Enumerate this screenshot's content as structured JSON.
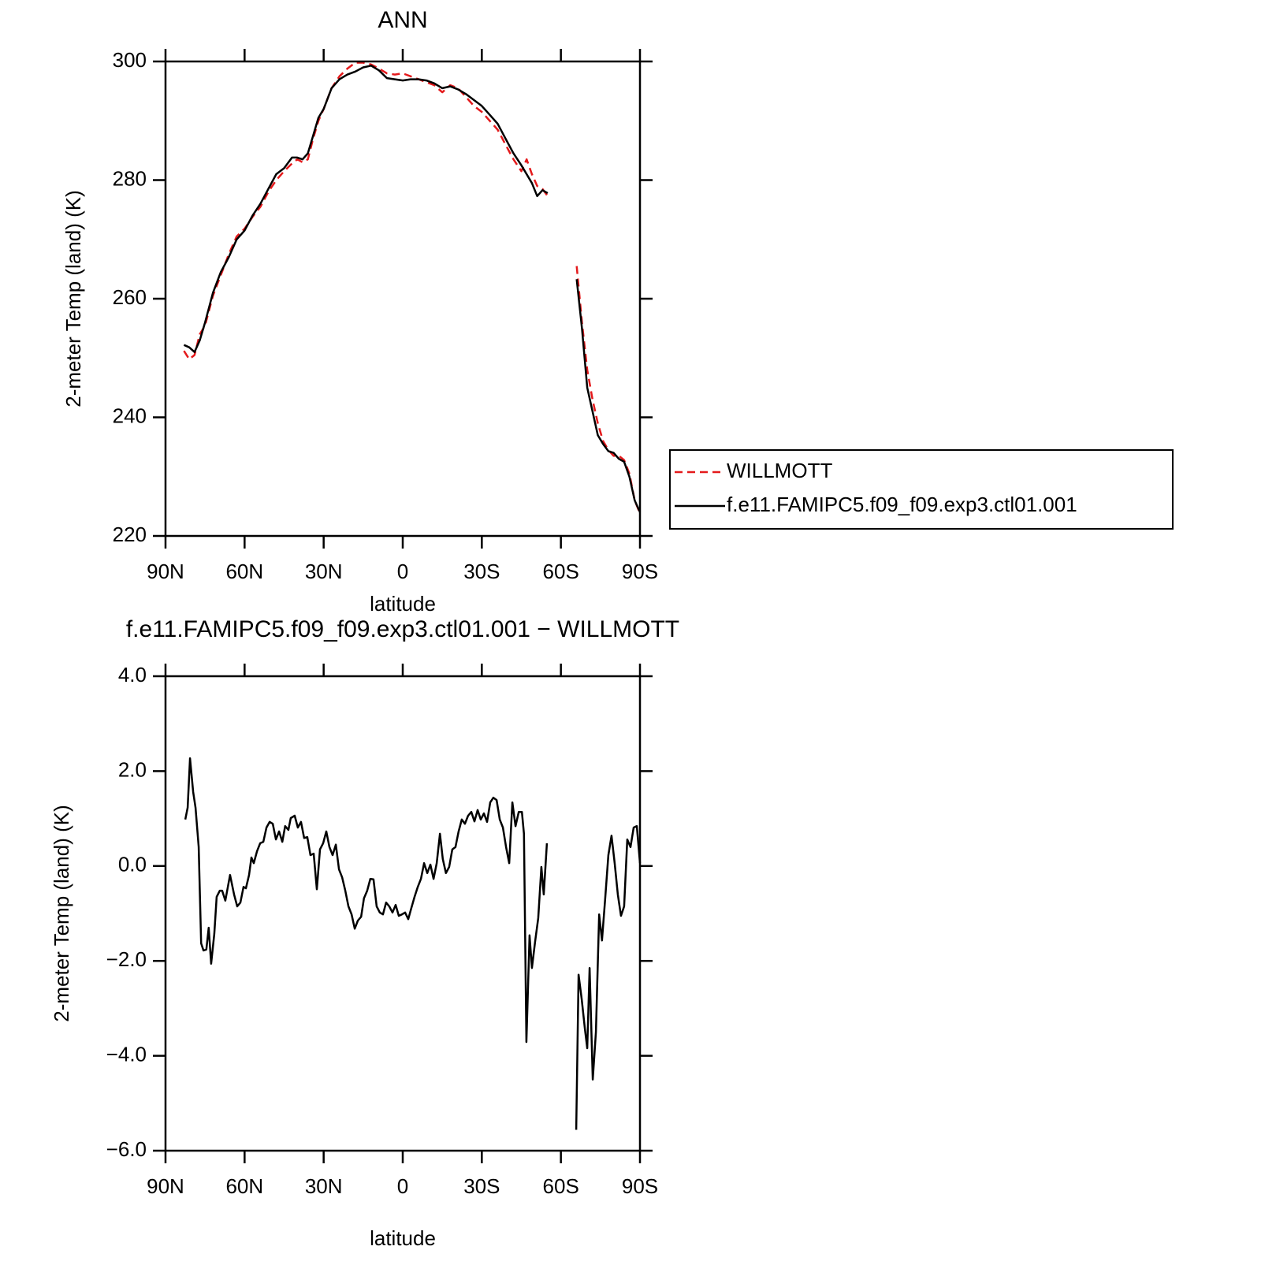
{
  "chart_data": [
    {
      "type": "line",
      "title": "ANN",
      "xlabel": "latitude",
      "ylabel": "2-meter Temp (land) (K)",
      "x": [
        83,
        81,
        79,
        77,
        75,
        72,
        69,
        66,
        63,
        60,
        57,
        54,
        51,
        48,
        45,
        42,
        40,
        38,
        36,
        34,
        32,
        30,
        27,
        24,
        21,
        18,
        15,
        12,
        9,
        6,
        3,
        0,
        -3,
        -6,
        -9,
        -12,
        -15,
        -18,
        -21,
        -24,
        -27,
        -30,
        -33,
        -36,
        -39,
        -42,
        -45,
        -47,
        -49,
        -51,
        -53,
        -55,
        -60,
        -66,
        -68,
        -70,
        -72,
        -74,
        -76,
        -78,
        -80,
        -82,
        -84,
        -86,
        -88,
        -90
      ],
      "xlim": [
        90,
        -90
      ],
      "xticks": [
        {
          "value": 90,
          "label": "90N"
        },
        {
          "value": 60,
          "label": "60N"
        },
        {
          "value": 30,
          "label": "30N"
        },
        0,
        {
          "value": -30,
          "label": "30S"
        },
        {
          "value": -60,
          "label": "60S"
        },
        {
          "value": -90,
          "label": "90S"
        }
      ],
      "ylim": [
        220,
        300
      ],
      "yticks": [
        220,
        240,
        260,
        280,
        300
      ],
      "legend": "right",
      "series": [
        {
          "name": "WILLMOTT",
          "color": "#e41a1c",
          "dash": "dashed",
          "values": [
            251.2,
            249.8,
            250.5,
            254,
            255.5,
            260.5,
            264,
            267.5,
            270.5,
            271.8,
            273.8,
            275.5,
            278,
            280,
            281.5,
            282.8,
            283.5,
            283,
            283.5,
            287,
            290,
            292,
            295.5,
            297.5,
            298.8,
            299.8,
            299.8,
            299.5,
            298.8,
            298,
            297.8,
            298,
            297.5,
            297,
            296.5,
            296,
            294.8,
            296,
            295.5,
            294,
            292.5,
            291.5,
            290,
            288.5,
            286,
            283.5,
            281.5,
            283.5,
            281,
            279,
            278.5,
            277.3,
            null,
            265.5,
            256,
            248,
            243,
            239,
            236,
            234.5,
            233.5,
            233.5,
            232.8,
            230.5,
            226,
            223.8
          ]
        },
        {
          "name": "f.e11.FAMIPC5.f09_f09.exp3.ctl01.001",
          "color": "#000000",
          "dash": "solid",
          "values": [
            252.2,
            251.8,
            251,
            253,
            256,
            261,
            264.5,
            267,
            270,
            271.5,
            274,
            276,
            278.5,
            281,
            282,
            283.8,
            283.8,
            283.5,
            284.5,
            287.5,
            290.5,
            292,
            295.5,
            297,
            297.8,
            298.3,
            299,
            299.3,
            298.5,
            297.2,
            297,
            296.8,
            297,
            297,
            296.8,
            296.3,
            295.5,
            295.8,
            295.3,
            294.5,
            293.5,
            292.5,
            291,
            289.5,
            287,
            284.5,
            282.5,
            281,
            279.5,
            277.3,
            278.3,
            277.8,
            null,
            263.3,
            255,
            245,
            241,
            237,
            235.5,
            234.3,
            234,
            233,
            232.5,
            230,
            226,
            224
          ]
        }
      ]
    },
    {
      "type": "line",
      "title": "f.e11.FAMIPC5.f09_f09.exp3.ctl01.001  −  WILLMOTT",
      "xlabel": "latitude",
      "ylabel": "2-meter Temp (land) (K)",
      "x": [
        82.5,
        81.6,
        80.7,
        79.5,
        78.6,
        77.4,
        76.5,
        75.6,
        74.5,
        73.6,
        72.7,
        71.5,
        70.6,
        69.4,
        68.5,
        67.3,
        65.5,
        64.0,
        62.8,
        61.6,
        60.4,
        59.5,
        58.3,
        57.4,
        56.5,
        55.3,
        54.1,
        52.9,
        51.7,
        50.5,
        49.3,
        48.1,
        46.9,
        45.7,
        44.6,
        43.4,
        42.5,
        41.0,
        39.8,
        38.6,
        37.4,
        36.2,
        35.0,
        33.8,
        32.6,
        31.4,
        30.2,
        29.0,
        27.8,
        26.6,
        25.4,
        24.2,
        23.0,
        21.8,
        20.6,
        19.4,
        18.2,
        17.0,
        15.8,
        14.7,
        13.5,
        12.3,
        11.1,
        9.9,
        8.7,
        7.5,
        6.3,
        5.1,
        3.9,
        2.7,
        1.5,
        0.3,
        -0.9,
        -2.1,
        -3.3,
        -4.5,
        -5.7,
        -6.9,
        -8.1,
        -9.3,
        -10.5,
        -11.7,
        -12.9,
        -14.1,
        -15.2,
        -16.4,
        -17.6,
        -18.8,
        -20.0,
        -21.2,
        -22.4,
        -23.6,
        -24.8,
        -26.0,
        -27.2,
        -28.4,
        -29.6,
        -30.8,
        -32.0,
        -33.2,
        -34.4,
        -35.6,
        -36.8,
        -38.0,
        -39.2,
        -40.4,
        -41.6,
        -42.8,
        -44.0,
        -45.2,
        -46.0,
        -46.9,
        -48.1,
        -49.0,
        -50.2,
        -51.4,
        -52.6,
        -53.5,
        -54.7,
        -60,
        -65.8,
        -66.7,
        -67.9,
        -69.1,
        -70.0,
        -70.9,
        -72.1,
        -73.3,
        -74.5,
        -75.6,
        -76.8,
        -78.0,
        -79.2,
        -80.4,
        -81.6,
        -82.8,
        -84.0,
        -85.2,
        -86.4,
        -87.6,
        -88.8,
        -90.0
      ],
      "xlim": [
        90,
        -90
      ],
      "xticks": [
        {
          "value": 90,
          "label": "90N"
        },
        {
          "value": 60,
          "label": "60N"
        },
        {
          "value": 30,
          "label": "30N"
        },
        0,
        {
          "value": -30,
          "label": "30S"
        },
        {
          "value": -60,
          "label": "60S"
        },
        {
          "value": -90,
          "label": "90S"
        }
      ],
      "ylim": [
        -6,
        4
      ],
      "yticks": [
        {
          "value": -6,
          "label": "−6.0"
        },
        {
          "value": -4,
          "label": "−4.0"
        },
        {
          "value": -2,
          "label": "−2.0"
        },
        {
          "value": 0,
          "label": "0.0"
        },
        {
          "value": 2,
          "label": "2.0"
        },
        {
          "value": 4,
          "label": "4.0"
        }
      ],
      "series": [
        {
          "color": "#000000",
          "dash": "solid",
          "values": [
            0.98,
            1.23,
            2.27,
            1.56,
            1.23,
            0.4,
            -1.63,
            -1.78,
            -1.76,
            -1.3,
            -2.06,
            -1.43,
            -0.65,
            -0.52,
            -0.52,
            -0.73,
            -0.19,
            -0.6,
            -0.85,
            -0.77,
            -0.44,
            -0.47,
            -0.19,
            0.18,
            0.06,
            0.31,
            0.48,
            0.51,
            0.81,
            0.93,
            0.89,
            0.56,
            0.73,
            0.51,
            0.84,
            0.76,
            1.01,
            1.06,
            0.81,
            0.93,
            0.59,
            0.61,
            0.23,
            0.26,
            -0.49,
            0.35,
            0.48,
            0.73,
            0.4,
            0.23,
            0.45,
            -0.07,
            -0.24,
            -0.52,
            -0.85,
            -1.02,
            -1.32,
            -1.15,
            -1.07,
            -0.68,
            -0.52,
            -0.27,
            -0.28,
            -0.85,
            -0.98,
            -1.02,
            -0.77,
            -0.85,
            -0.98,
            -0.82,
            -1.05,
            -1.02,
            -0.98,
            -1.12,
            -0.88,
            -0.65,
            -0.44,
            -0.27,
            0.06,
            -0.15,
            0.03,
            -0.27,
            0.06,
            0.68,
            0.15,
            -0.15,
            -0.02,
            0.35,
            0.4,
            0.73,
            0.98,
            0.89,
            1.06,
            1.14,
            0.94,
            1.18,
            0.98,
            1.11,
            0.93,
            1.34,
            1.44,
            1.39,
            0.98,
            0.81,
            0.4,
            0.06,
            1.34,
            0.84,
            1.14,
            1.14,
            0.68,
            -3.71,
            -1.46,
            -2.15,
            -1.6,
            -1.1,
            -0.02,
            -0.6,
            0.48,
            null,
            -5.56,
            -2.29,
            -2.81,
            -3.43,
            -3.84,
            -2.15,
            -4.5,
            -3.5,
            -1.02,
            -1.57,
            -0.68,
            0.23,
            0.64,
            0.06,
            -0.6,
            -1.05,
            -0.85,
            0.56,
            0.4,
            0.81,
            0.84,
            0.06
          ]
        }
      ]
    }
  ]
}
